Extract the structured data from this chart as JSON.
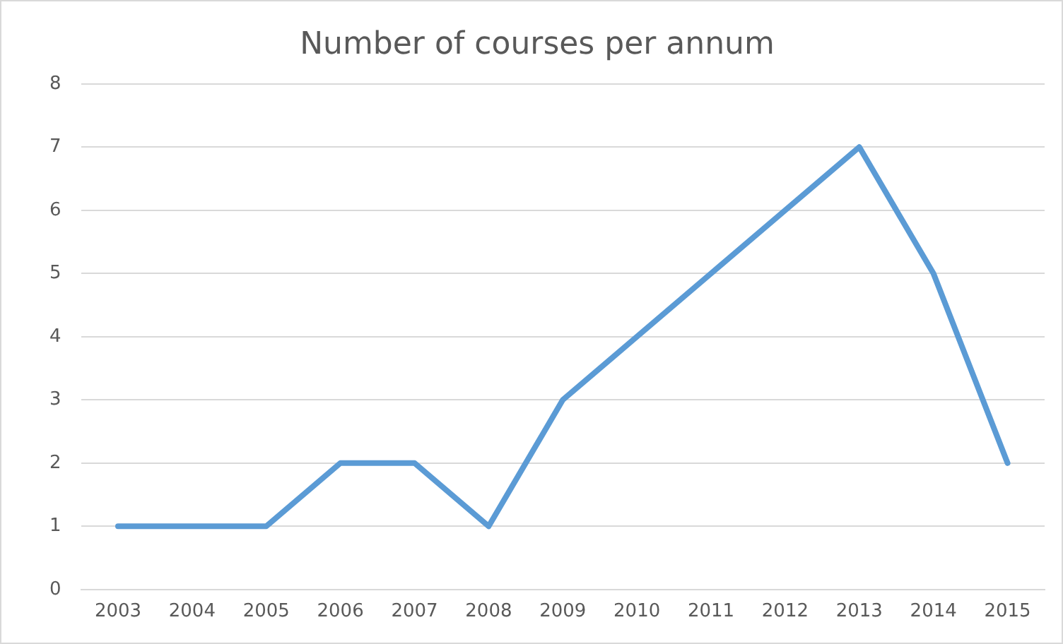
{
  "chart_data": {
    "type": "line",
    "title": "Number of courses per annum",
    "categories": [
      "2003",
      "2004",
      "2005",
      "2006",
      "2007",
      "2008",
      "2009",
      "2010",
      "2011",
      "2012",
      "2013",
      "2014",
      "2015"
    ],
    "series": [
      {
        "color": "#5b9bd5",
        "values": [
          1,
          1,
          1,
          2,
          2,
          1,
          3,
          4,
          5,
          6,
          7,
          5,
          2
        ]
      }
    ],
    "ylim": [
      0,
      8
    ],
    "yticks": [
      0,
      1,
      2,
      3,
      4,
      5,
      6,
      7,
      8
    ],
    "grid": "y",
    "legend": false,
    "marker": "none",
    "line_style": "solid"
  }
}
